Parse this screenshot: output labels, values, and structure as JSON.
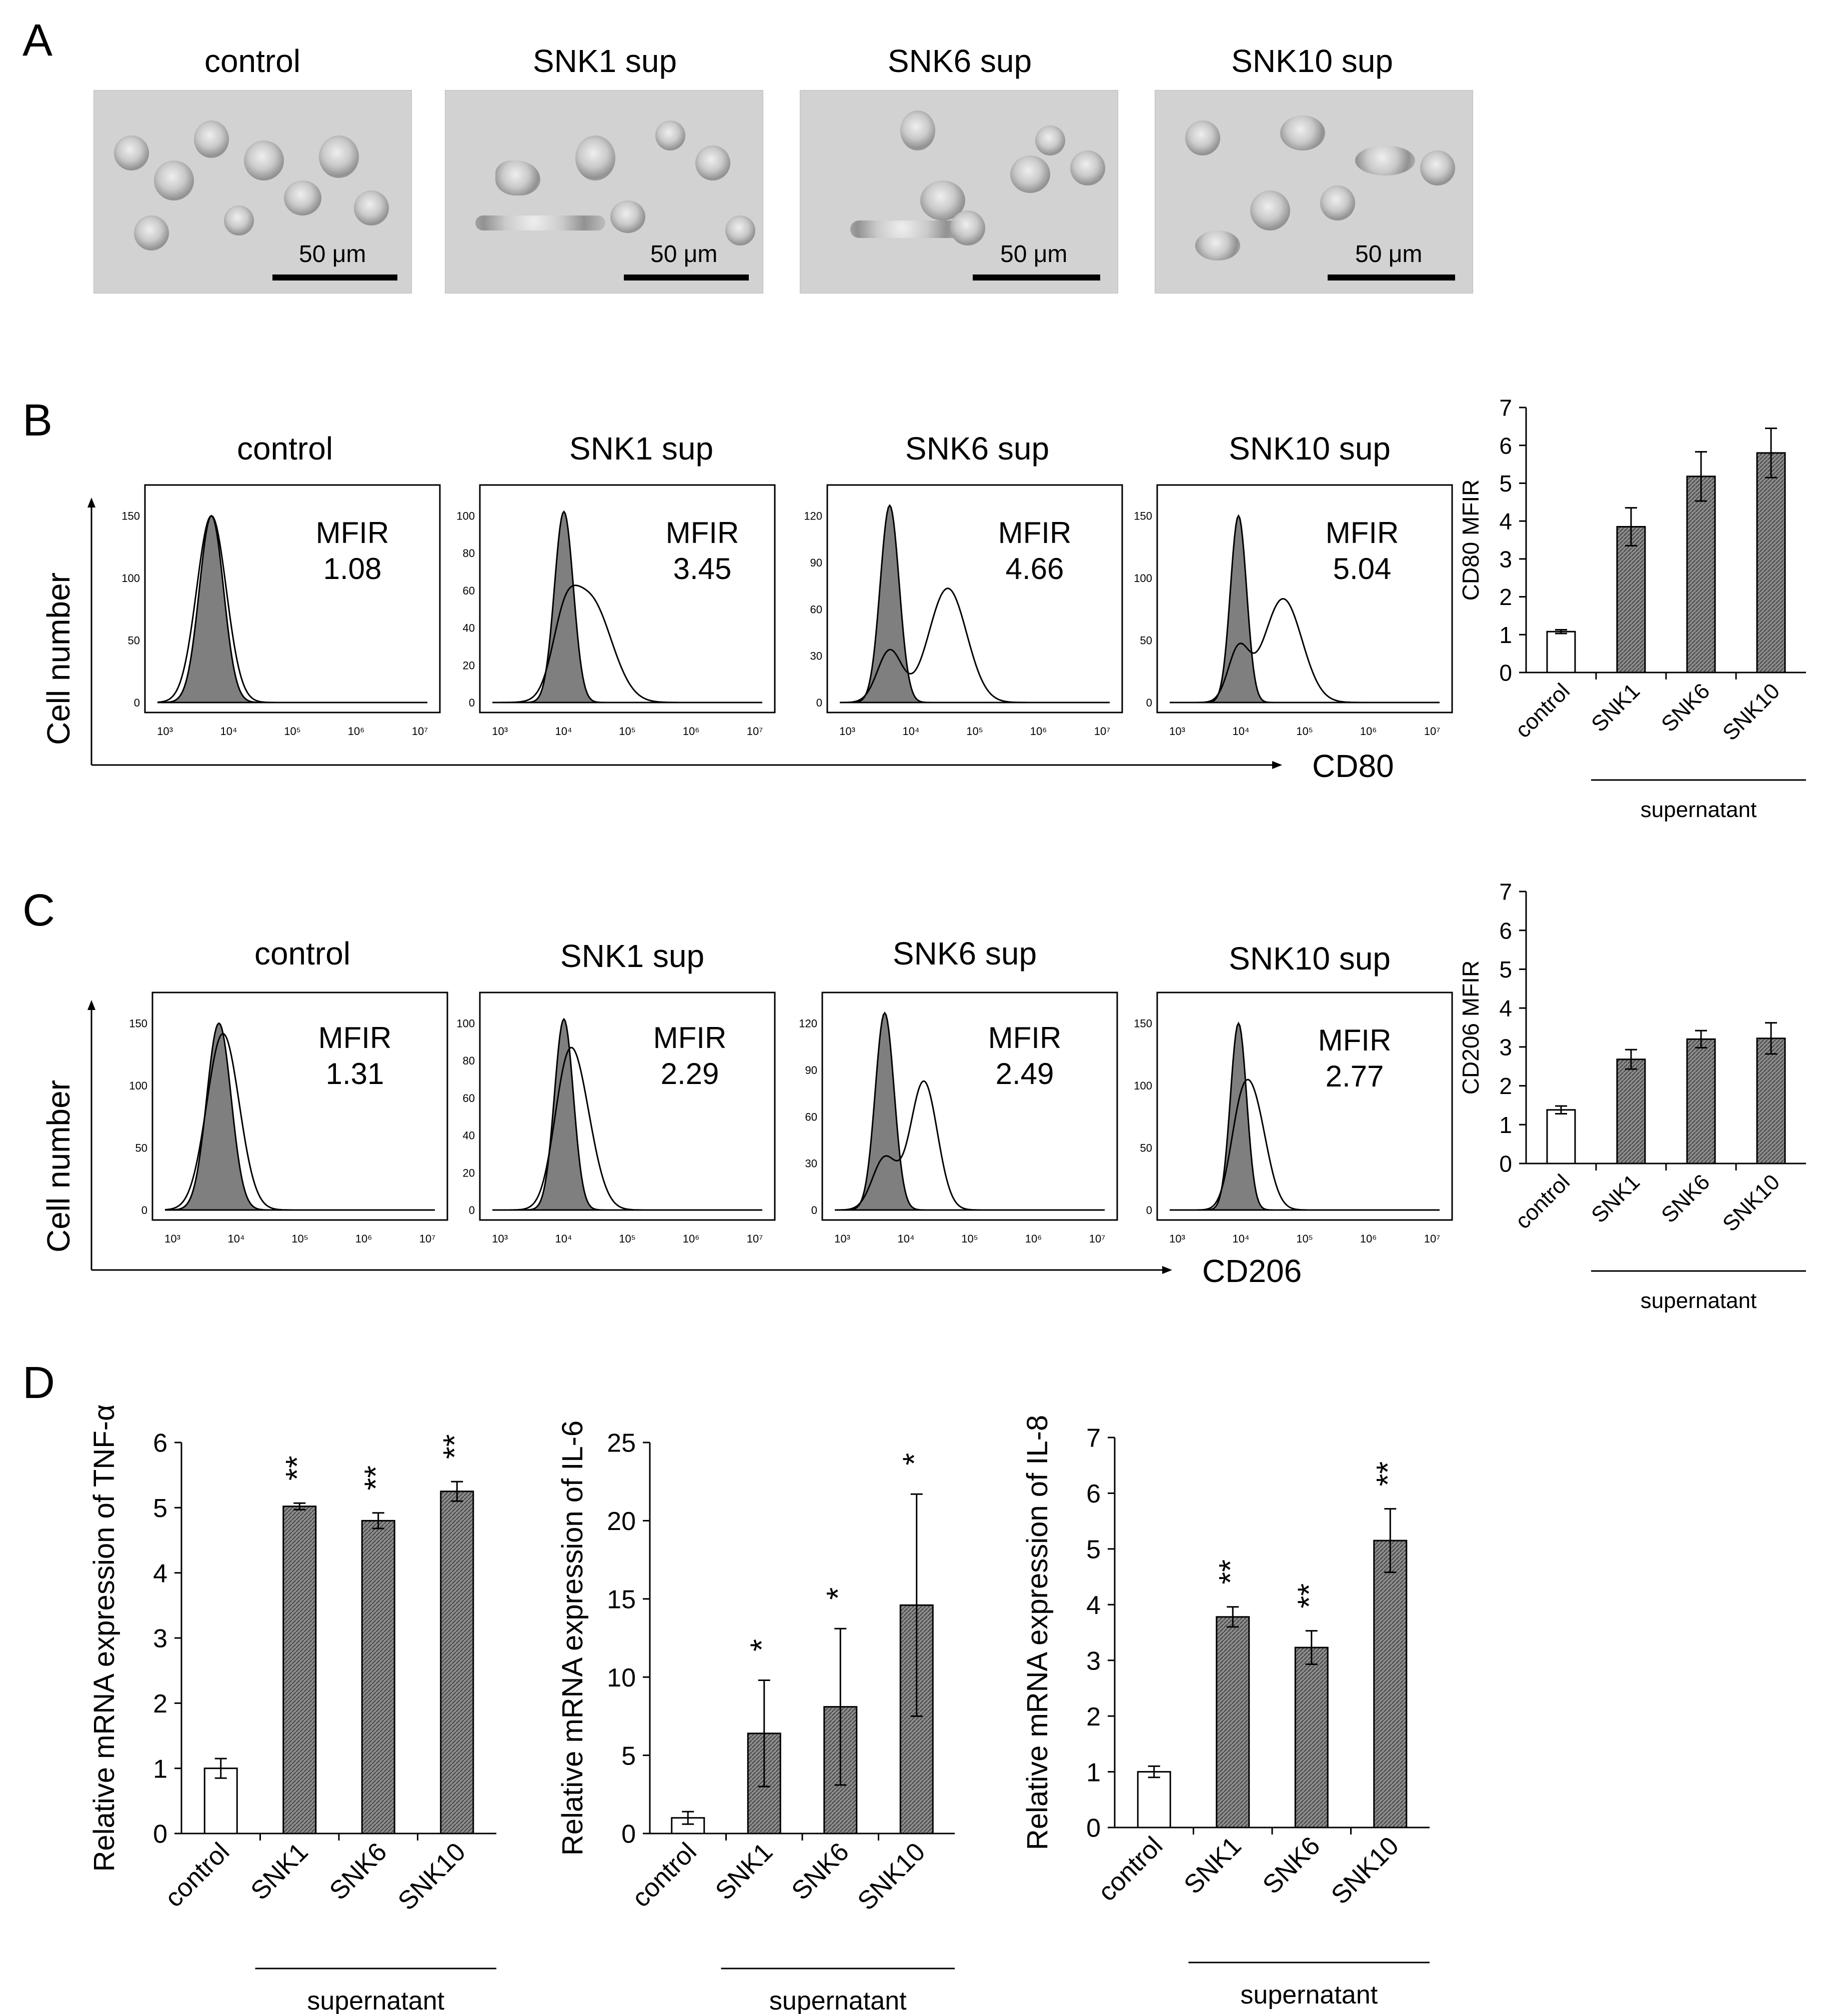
{
  "panels": {
    "a": "A",
    "b": "B",
    "c": "C",
    "d": "D"
  },
  "panel_a": {
    "titles": [
      "control",
      "SNK1 sup",
      "SNK6 sup",
      "SNK10 sup"
    ],
    "scale_label": "50 μm"
  },
  "panel_b": {
    "titles": [
      "control",
      "SNK1 sup",
      "SNK6 sup",
      "SNK10 sup"
    ],
    "mfir_label": "MFIR",
    "mfir_values": [
      "1.08",
      "3.45",
      "4.66",
      "5.04"
    ],
    "y_axis_label": "Cell number",
    "x_axis_label": "CD80"
  },
  "panel_c": {
    "titles": [
      "control",
      "SNK1 sup",
      "SNK6 sup",
      "SNK10 sup"
    ],
    "mfir_label": "MFIR",
    "mfir_values": [
      "1.31",
      "2.29",
      "2.49",
      "2.77"
    ],
    "y_axis_label": "Cell number",
    "x_axis_label": "CD206"
  },
  "histogram_axes": {
    "x_ticks": [
      "10³",
      "10⁴",
      "10⁵",
      "10⁶",
      "10⁷"
    ],
    "y_ticks": [
      [
        "0",
        "50",
        "100",
        "150"
      ],
      [
        "0",
        "20",
        "40",
        "60",
        "80",
        "100"
      ],
      [
        "0",
        "30",
        "60",
        "90",
        "120"
      ],
      [
        "0",
        "50",
        "100",
        "150"
      ]
    ]
  },
  "colors": {
    "filled": "#7f7f7f",
    "bar_fill": "#8c8c8c",
    "open": "#ffffff"
  },
  "chart_data": [
    {
      "id": "cd80",
      "type": "bar",
      "ylabel": "CD80 MFIR",
      "categories": [
        "control",
        "SNK1",
        "SNK6",
        "SNK10"
      ],
      "values": [
        1.08,
        3.85,
        5.18,
        5.8
      ],
      "errors": [
        0.05,
        0.5,
        0.65,
        0.65
      ],
      "ylim": [
        0,
        7
      ],
      "yticks": [
        0,
        1,
        2,
        3,
        4,
        5,
        6,
        7
      ],
      "group_label": "supernatant",
      "stars": [
        "",
        "",
        "",
        ""
      ]
    },
    {
      "id": "cd206",
      "type": "bar",
      "ylabel": "CD206 MFIR",
      "categories": [
        "control",
        "SNK1",
        "SNK6",
        "SNK10"
      ],
      "values": [
        1.38,
        2.68,
        3.2,
        3.22
      ],
      "errors": [
        0.1,
        0.25,
        0.22,
        0.4
      ],
      "ylim": [
        0,
        7
      ],
      "yticks": [
        0,
        1,
        2,
        3,
        4,
        5,
        6,
        7
      ],
      "group_label": "supernatant",
      "stars": [
        "",
        "",
        "",
        ""
      ]
    },
    {
      "id": "tnf",
      "type": "bar",
      "ylabel": "Relative mRNA expression of TNF-α",
      "categories": [
        "control",
        "SNK1",
        "SNK6",
        "SNK10"
      ],
      "values": [
        1.0,
        5.02,
        4.8,
        5.25
      ],
      "errors": [
        0.15,
        0.05,
        0.12,
        0.15
      ],
      "ylim": [
        0,
        6
      ],
      "yticks": [
        0,
        1,
        2,
        3,
        4,
        5,
        6
      ],
      "group_label": "supernatant",
      "stars": [
        "",
        "**",
        "**",
        "**"
      ]
    },
    {
      "id": "il6",
      "type": "bar",
      "ylabel": "Relative mRNA expression of IL-6",
      "categories": [
        "control",
        "SNK1",
        "SNK6",
        "SNK10"
      ],
      "values": [
        1.0,
        6.4,
        8.1,
        14.6
      ],
      "errors": [
        0.4,
        3.4,
        5.0,
        7.1
      ],
      "ylim": [
        0,
        25
      ],
      "yticks": [
        0,
        5,
        10,
        15,
        20,
        25
      ],
      "group_label": "supernatant",
      "stars": [
        "",
        "*",
        "*",
        "*"
      ]
    },
    {
      "id": "il8",
      "type": "bar",
      "ylabel": "Relative mRNA expression of IL-8",
      "categories": [
        "control",
        "SNK1",
        "SNK6",
        "SNK10"
      ],
      "values": [
        1.0,
        3.78,
        3.23,
        5.15
      ],
      "errors": [
        0.1,
        0.18,
        0.3,
        0.57
      ],
      "ylim": [
        0,
        7
      ],
      "yticks": [
        0,
        1,
        2,
        3,
        4,
        5,
        6,
        7
      ],
      "group_label": "supernatant",
      "stars": [
        "",
        "**",
        "**",
        "**"
      ]
    }
  ]
}
